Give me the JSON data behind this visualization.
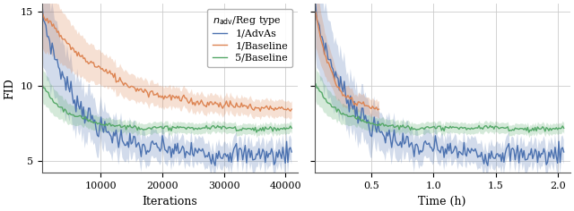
{
  "ylabel_left": "FID",
  "xlabel_left": "Iterations",
  "xlabel_right": "Time (h)",
  "legend_title": "$n_{\\mathrm{adv}}$/Reg type",
  "legend_entries": [
    "1/AdvAs",
    "1/Baseline",
    "5/Baseline"
  ],
  "colors": [
    "#4c72b0",
    "#dd8452",
    "#55a868"
  ],
  "alpha_fill": 0.25,
  "ylim_left": [
    4.2,
    15.5
  ],
  "ylim_right": [
    4.2,
    15.5
  ],
  "xlim_left": [
    500,
    42000
  ],
  "xlim_right": [
    0.04,
    2.1
  ],
  "xticks_left": [
    10000,
    20000,
    30000,
    40000
  ],
  "xticklabels_left": [
    "10000",
    "20000",
    "30000",
    "40000"
  ],
  "xticks_right": [
    0.5,
    1.0,
    1.5,
    2.0
  ],
  "xticklabels_right": [
    "0.5",
    "1.0",
    "1.5",
    "2.0"
  ],
  "yticks": [
    5,
    10,
    15
  ],
  "background_color": "#ffffff",
  "grid_color": "#cccccc",
  "figsize": [
    6.4,
    2.36
  ],
  "dpi": 100
}
